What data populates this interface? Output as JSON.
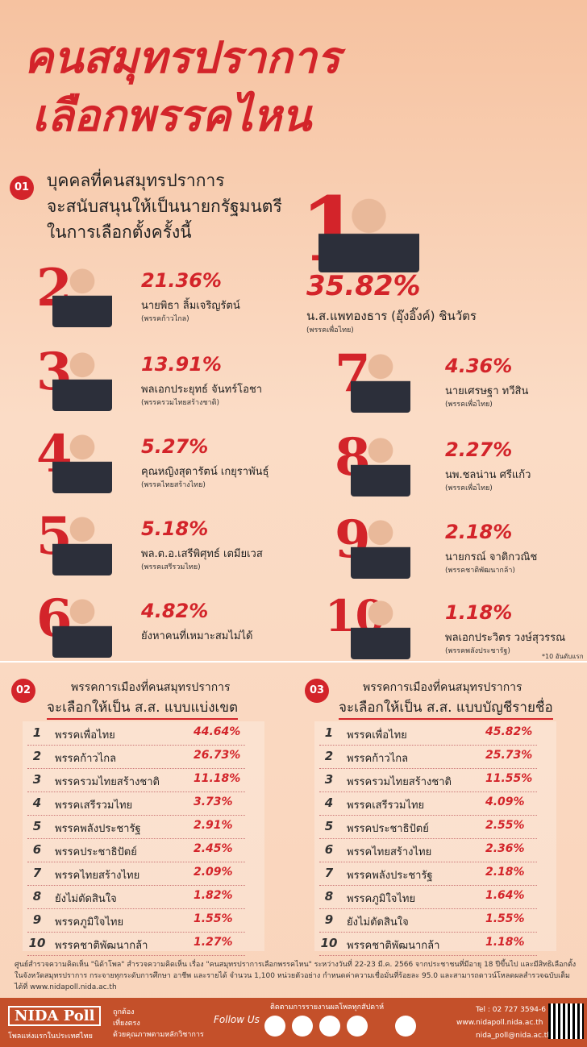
{
  "title": [
    "คนสมุทรปราการ",
    "เลือกพรรคไหน"
  ],
  "section1": {
    "number": "01",
    "heading": [
      "บุคคลที่คนสมุทรปราการ",
      "จะสนับสนุนให้เป็นนายกรัฐมนตรี",
      "ในการเลือกตั้งครั้งนี้"
    ],
    "candidates": [
      {
        "rank": 1,
        "percent": "35.82%",
        "name": "น.ส.แพทองธาร (อุ๊งอิ๊งค์) ชินวัตร",
        "party": "(พรรคเพื่อไทย)"
      },
      {
        "rank": 2,
        "percent": "21.36%",
        "name": "นายพิธา ลิ้มเจริญรัตน์",
        "party": "(พรรคก้าวไกล)"
      },
      {
        "rank": 3,
        "percent": "13.91%",
        "name": "พลเอกประยุทธ์ จันทร์โอชา",
        "party": "(พรรครวมไทยสร้างชาติ)"
      },
      {
        "rank": 4,
        "percent": "5.27%",
        "name": "คุณหญิงสุดารัตน์ เกยุราพันธุ์",
        "party": "(พรรคไทยสร้างไทย)"
      },
      {
        "rank": 5,
        "percent": "5.18%",
        "name": "พล.ต.อ.เสรีพิศุทธ์ เตมียเวส",
        "party": "(พรรคเสรีรวมไทย)"
      },
      {
        "rank": 6,
        "percent": "4.82%",
        "name": "ยังหาคนที่เหมาะสมไม่ได้"
      },
      {
        "rank": 7,
        "percent": "4.36%",
        "name": "นายเศรษฐา ทวีสิน",
        "party": "(พรรคเพื่อไทย)"
      },
      {
        "rank": 8,
        "percent": "2.27%",
        "name": "นพ.ชลน่าน ศรีแก้ว",
        "party": "(พรรคเพื่อไทย)"
      },
      {
        "rank": 9,
        "percent": "2.18%",
        "name": "นายกรณ์ จาติกวณิช",
        "party": "(พรรคชาติพัฒนากล้า)"
      },
      {
        "rank": 10,
        "percent": "1.18%",
        "name": "พลเอกประวิตร วงษ์สุวรรณ",
        "party": "(พรรคพลังประชารัฐ)"
      }
    ],
    "note": "*10 อันดับแรก"
  },
  "section2": {
    "number": "02",
    "heading": [
      "พรรคการเมืองที่คนสมุทรปราการ",
      "จะเลือกให้เป็น ส.ส. แบบแบ่งเขต"
    ],
    "rows": [
      [
        1,
        "พรรคเพื่อไทย",
        "44.64%"
      ],
      [
        2,
        "พรรคก้าวไกล",
        "26.73%"
      ],
      [
        3,
        "พรรครวมไทยสร้างชาติ",
        "11.18%"
      ],
      [
        4,
        "พรรคเสรีรวมไทย",
        "3.73%"
      ],
      [
        5,
        "พรรคพลังประชารัฐ",
        "2.91%"
      ],
      [
        6,
        "พรรคประชาธิปัตย์",
        "2.45%"
      ],
      [
        7,
        "พรรคไทยสร้างไทย",
        "2.09%"
      ],
      [
        8,
        "ยังไม่ตัดสินใจ",
        "1.82%"
      ],
      [
        9,
        "พรรคภูมิใจไทย",
        "1.55%"
      ],
      [
        10,
        "พรรคชาติพัฒนากล้า",
        "1.27%"
      ]
    ]
  },
  "section3": {
    "number": "03",
    "heading": [
      "พรรคการเมืองที่คนสมุทรปราการ",
      "จะเลือกให้เป็น ส.ส. แบบบัญชีรายชื่อ"
    ],
    "rows": [
      [
        1,
        "พรรคเพื่อไทย",
        "45.82%"
      ],
      [
        2,
        "พรรคก้าวไกล",
        "25.73%"
      ],
      [
        3,
        "พรรครวมไทยสร้างชาติ",
        "11.55%"
      ],
      [
        4,
        "พรรคเสรีรวมไทย",
        "4.09%"
      ],
      [
        5,
        "พรรคประชาธิปัตย์",
        "2.55%"
      ],
      [
        6,
        "พรรคไทยสร้างไทย",
        "2.36%"
      ],
      [
        7,
        "พรรคพลังประชารัฐ",
        "2.18%"
      ],
      [
        8,
        "พรรคภูมิใจไทย",
        "1.64%"
      ],
      [
        9,
        "ยังไม่ตัดสินใจ",
        "1.55%"
      ],
      [
        10,
        "พรรคชาติพัฒนากล้า",
        "1.18%"
      ]
    ]
  },
  "footnote": "ศูนย์สำรวจความคิดเห็น \"นิด้าโพล\" สำรวจความคิดเห็น เรื่อง \"คนสมุทรปราการเลือกพรรคไหน\" ระหว่างวันที่ 22-23 มี.ค. 2566 จากประชาชนที่มีอายุ 18 ปีขึ้นไป และมีสิทธิเลือกตั้งในจังหวัดสมุทรปราการ กระจายทุกระดับการศึกษา อาชีพ และรายได้ จำนวน 1,100 หน่วยตัวอย่าง กำหนดค่าความเชื่อมั่นที่ร้อยละ 95.0 และสามารถดาวน์โหลดผลสำรวจฉบับเต็มได้ที่ www.nidapoll.nida.ac.th",
  "footer": {
    "logo": "NIDA Poll",
    "tagline": "โพลแห่งแรกในประเทศไทย",
    "values": [
      "ถูกต้อง",
      "เที่ยงตรง",
      "ด้วยคุณภาพตามหลักวิชาการ"
    ],
    "follow": "Follow Us",
    "follow_note": "ติดตามการรายงานผลโพลทุกสัปดาห์",
    "tel": "Tel : 02 727 3594-6",
    "website": "www.nidapoll.nida.ac.th",
    "email": "nida_poll@nida.ac.th"
  }
}
